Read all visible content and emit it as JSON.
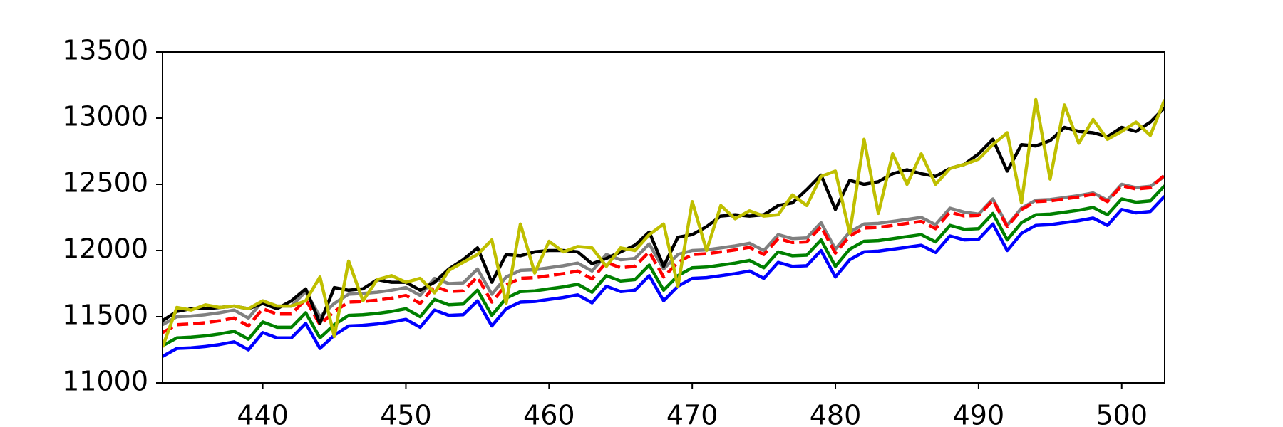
{
  "chart_data": {
    "type": "line",
    "x": [
      433,
      434,
      435,
      436,
      437,
      438,
      439,
      440,
      441,
      442,
      443,
      444,
      445,
      446,
      447,
      448,
      449,
      450,
      451,
      452,
      453,
      454,
      455,
      456,
      457,
      458,
      459,
      460,
      461,
      462,
      463,
      464,
      465,
      466,
      467,
      468,
      469,
      470,
      471,
      472,
      473,
      474,
      475,
      476,
      477,
      478,
      479,
      480,
      481,
      482,
      483,
      484,
      485,
      486,
      487,
      488,
      489,
      490,
      491,
      492,
      493,
      494,
      495,
      496,
      497,
      498,
      499,
      500,
      501,
      502,
      503
    ],
    "xlim": [
      433,
      503
    ],
    "xticks": [
      440,
      450,
      460,
      470,
      480,
      490,
      500
    ],
    "ylim": [
      11000,
      13500
    ],
    "yticks": [
      11000,
      11500,
      12000,
      12500,
      13000,
      13500
    ],
    "series": [
      {
        "color": "#0000ff",
        "linestyle": "solid",
        "values": [
          11200,
          11260,
          11265,
          11275,
          11290,
          11310,
          11250,
          11380,
          11340,
          11340,
          11450,
          11260,
          11360,
          11430,
          11435,
          11445,
          11460,
          11480,
          11420,
          11550,
          11510,
          11515,
          11620,
          11430,
          11560,
          11610,
          11615,
          11630,
          11645,
          11665,
          11605,
          11730,
          11690,
          11700,
          11810,
          11620,
          11730,
          11790,
          11795,
          11810,
          11825,
          11845,
          11790,
          11910,
          11880,
          11885,
          12000,
          11800,
          11930,
          11990,
          11995,
          12010,
          12025,
          12040,
          11985,
          12110,
          12080,
          12085,
          12200,
          12000,
          12130,
          12190,
          12195,
          12210,
          12225,
          12245,
          12190,
          12310,
          12285,
          12295,
          12410
        ]
      },
      {
        "color": "#008000",
        "linestyle": "solid",
        "values": [
          11280,
          11340,
          11345,
          11355,
          11370,
          11390,
          11330,
          11460,
          11420,
          11420,
          11530,
          11340,
          11440,
          11510,
          11515,
          11525,
          11540,
          11560,
          11500,
          11630,
          11590,
          11595,
          11700,
          11510,
          11640,
          11690,
          11695,
          11710,
          11725,
          11745,
          11685,
          11810,
          11770,
          11780,
          11890,
          11700,
          11810,
          11870,
          11875,
          11890,
          11905,
          11925,
          11870,
          11990,
          11960,
          11965,
          12080,
          11880,
          12010,
          12070,
          12075,
          12090,
          12105,
          12120,
          12065,
          12190,
          12160,
          12165,
          12280,
          12080,
          12210,
          12270,
          12275,
          12290,
          12305,
          12325,
          12270,
          12390,
          12365,
          12375,
          12490
        ]
      },
      {
        "color": "#808080",
        "linestyle": "solid",
        "values": [
          11440,
          11500,
          11505,
          11515,
          11530,
          11550,
          11490,
          11620,
          11580,
          11580,
          11690,
          11500,
          11600,
          11670,
          11675,
          11685,
          11700,
          11720,
          11660,
          11790,
          11750,
          11755,
          11860,
          11670,
          11800,
          11850,
          11855,
          11870,
          11885,
          11905,
          11845,
          11970,
          11930,
          11940,
          12050,
          11860,
          11970,
          12000,
          12005,
          12020,
          12035,
          12055,
          12000,
          12120,
          12090,
          12095,
          12210,
          12010,
          12140,
          12200,
          12205,
          12220,
          12235,
          12250,
          12195,
          12320,
          12290,
          12275,
          12390,
          12190,
          12320,
          12380,
          12385,
          12400,
          12415,
          12435,
          12380,
          12500,
          12475,
          12485,
          12560
        ]
      },
      {
        "color": "#ff0000",
        "linestyle": "dashed",
        "values": [
          11380,
          11440,
          11445,
          11455,
          11470,
          11490,
          11430,
          11560,
          11520,
          11520,
          11630,
          11440,
          11540,
          11610,
          11615,
          11625,
          11640,
          11660,
          11600,
          11730,
          11690,
          11695,
          11800,
          11610,
          11740,
          11790,
          11795,
          11810,
          11825,
          11845,
          11785,
          11910,
          11870,
          11880,
          11990,
          11800,
          11910,
          11970,
          11975,
          11990,
          12005,
          12025,
          11970,
          12090,
          12060,
          12065,
          12180,
          11980,
          12110,
          12170,
          12175,
          12190,
          12205,
          12220,
          12165,
          12290,
          12260,
          12265,
          12380,
          12180,
          12310,
          12370,
          12375,
          12390,
          12405,
          12425,
          12370,
          12490,
          12465,
          12475,
          12570
        ]
      },
      {
        "color": "#000000",
        "linestyle": "solid",
        "values": [
          11470,
          11540,
          11560,
          11560,
          11570,
          11580,
          11560,
          11600,
          11560,
          11620,
          11710,
          11450,
          11720,
          11700,
          11710,
          11780,
          11760,
          11760,
          11700,
          11760,
          11860,
          11930,
          12020,
          11760,
          11970,
          11960,
          11990,
          12000,
          12000,
          11990,
          11900,
          11940,
          11990,
          12040,
          12140,
          11880,
          12100,
          12120,
          12180,
          12260,
          12270,
          12260,
          12270,
          12340,
          12360,
          12460,
          12570,
          12310,
          12530,
          12500,
          12520,
          12580,
          12610,
          12580,
          12560,
          12620,
          12650,
          12730,
          12840,
          12600,
          12800,
          12790,
          12830,
          12930,
          12900,
          12890,
          12860,
          12930,
          12900,
          12970,
          13080
        ]
      },
      {
        "color": "#bfbf00",
        "linestyle": "solid",
        "values": [
          11270,
          11570,
          11550,
          11590,
          11570,
          11580,
          11560,
          11620,
          11580,
          11580,
          11620,
          11800,
          11350,
          11920,
          11620,
          11780,
          11810,
          11760,
          11790,
          11680,
          11850,
          11910,
          11970,
          12080,
          11600,
          12200,
          11830,
          12070,
          11990,
          12030,
          12020,
          11880,
          12020,
          12000,
          12120,
          12200,
          11730,
          12370,
          12000,
          12340,
          12240,
          12300,
          12260,
          12270,
          12420,
          12340,
          12560,
          12600,
          12130,
          12840,
          12280,
          12730,
          12500,
          12730,
          12500,
          12620,
          12650,
          12690,
          12800,
          12890,
          12360,
          13140,
          12540,
          13100,
          12810,
          12990,
          12840,
          12900,
          12970,
          12870,
          13140
        ]
      }
    ]
  }
}
